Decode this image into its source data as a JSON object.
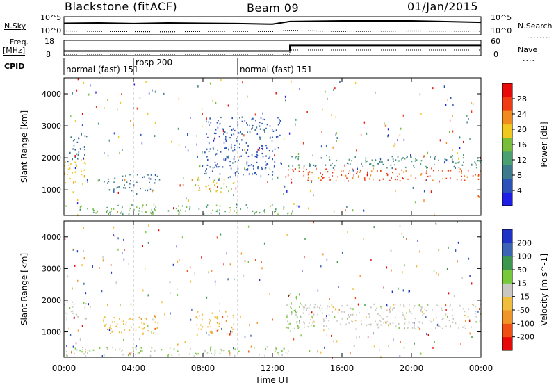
{
  "header": {
    "station": "Blackstone (fitACF)",
    "beam": "Beam 09",
    "date": "01/Jan/2015"
  },
  "side_labels": {
    "nsky": "N.Sky",
    "nsky_ticks": [
      "10^5",
      "10^0"
    ],
    "nsearch": "N.Search",
    "nsearch_ticks": [
      "10^5",
      "10^0"
    ],
    "freq": "Freq.",
    "freq_unit": "[MHz]",
    "freq_ticks": [
      "18",
      "8"
    ],
    "nave": "Nave",
    "nave_ticks": [
      "60",
      "0"
    ],
    "cpid": "CPID"
  },
  "cpid_segments": [
    {
      "label": "normal (fast) 151",
      "start_hour": 0,
      "end_hour": 4
    },
    {
      "label": "rbsp 200",
      "start_hour": 4,
      "end_hour": 10
    },
    {
      "label": "normal (fast) 151",
      "start_hour": 10,
      "end_hour": 24
    }
  ],
  "freq_series": {
    "x_hours": [
      0,
      13,
      13,
      24
    ],
    "values_mhz": [
      10.5,
      10.5,
      15,
      15
    ]
  },
  "nave_series": {
    "x_hours": [
      0,
      13,
      13,
      24
    ],
    "values": [
      0,
      0,
      20,
      20
    ]
  },
  "nsky_series": {
    "x_hours": [
      0,
      2,
      4,
      6,
      8,
      10,
      12,
      13,
      16,
      20,
      24
    ],
    "log_values": [
      3.3,
      3.4,
      3.2,
      3.4,
      3.3,
      3.2,
      3.0,
      3.9,
      4.1,
      4.1,
      3.6
    ]
  },
  "nsearch_series": {
    "x_hours": [
      0,
      3,
      6,
      9,
      12,
      13,
      16,
      20,
      24
    ],
    "log_values": [
      0.8,
      0.6,
      0.5,
      0.7,
      0.6,
      1.0,
      0.6,
      0.8,
      0.7
    ]
  },
  "chart_data": [
    {
      "type": "heatmap",
      "quantity": "Power",
      "ylabel": "Slant Range [km]",
      "xlabel": "Time UT",
      "xlim": [
        0,
        24
      ],
      "ylim": [
        200,
        4500
      ],
      "y_ticks": [
        "1000",
        "2000",
        "3000",
        "4000"
      ],
      "colorbar": {
        "label": "Power [dB]",
        "ticks": [
          "4",
          "8",
          "12",
          "16",
          "20",
          "24",
          "28"
        ],
        "range": [
          0,
          32
        ]
      },
      "echo_regions": [
        {
          "t0": 0,
          "t1": 1.2,
          "r0": 1200,
          "r1": 2000,
          "value": 20
        },
        {
          "t0": 0.2,
          "t1": 1.3,
          "r0": 1900,
          "r1": 2700,
          "value": 8
        },
        {
          "t0": 2.2,
          "t1": 5.5,
          "r0": 1000,
          "r1": 1500,
          "value": 8
        },
        {
          "t0": 7.5,
          "t1": 9.8,
          "r0": 950,
          "r1": 1400,
          "value": 18
        },
        {
          "t0": 8.0,
          "t1": 12.5,
          "r0": 1400,
          "r1": 3300,
          "value": 6
        },
        {
          "t0": 0,
          "t1": 13,
          "r0": 250,
          "r1": 550,
          "value": 14
        },
        {
          "t0": 12.8,
          "t1": 24,
          "r0": 1300,
          "r1": 1700,
          "value": 26
        },
        {
          "t0": 12.8,
          "t1": 24,
          "r0": 1700,
          "r1": 2100,
          "value": 11
        }
      ]
    },
    {
      "type": "heatmap",
      "quantity": "Velocity",
      "ylabel": "Slant Range [km]",
      "xlabel": "Time UT",
      "xlim": [
        0,
        24
      ],
      "ylim": [
        200,
        4500
      ],
      "y_ticks": [
        "1000",
        "2000",
        "3000",
        "4000"
      ],
      "colorbar": {
        "label": "Velocity [m s^-1]",
        "ticks": [
          "200",
          "100",
          "50",
          "15",
          "-15",
          "-50",
          "-100",
          "-200"
        ],
        "range": [
          -250,
          250
        ]
      },
      "echo_regions": [
        {
          "t0": 0,
          "t1": 1.3,
          "r0": 1400,
          "r1": 2000,
          "value": 0
        },
        {
          "t0": 2.2,
          "t1": 5.5,
          "r0": 900,
          "r1": 1500,
          "value": -60
        },
        {
          "t0": 7.5,
          "t1": 9.8,
          "r0": 900,
          "r1": 1700,
          "value": -60
        },
        {
          "t0": 0,
          "t1": 13,
          "r0": 250,
          "r1": 550,
          "value": 30
        },
        {
          "t0": 12.8,
          "t1": 24,
          "r0": 1100,
          "r1": 1900,
          "value": 0
        },
        {
          "t0": 12.8,
          "t1": 13.6,
          "r0": 1000,
          "r1": 2300,
          "value": 60
        }
      ]
    }
  ],
  "time_axis": {
    "ticks": [
      "00:00",
      "04:00",
      "08:00",
      "12:00",
      "16:00",
      "20:00",
      "00:00"
    ],
    "label": "Time UT"
  },
  "colors": {
    "power": [
      "#1e1ee6",
      "#2a52b8",
      "#3c7a8c",
      "#4aa070",
      "#78be3c",
      "#f0c81e",
      "#f08c1e",
      "#f03c14",
      "#e60a0a"
    ],
    "velocity": [
      "#e60a0a",
      "#f05014",
      "#f09628",
      "#f0be3c",
      "#c8c8c0",
      "#78c83c",
      "#3c9650",
      "#3c64b4",
      "#1e32c8"
    ]
  }
}
